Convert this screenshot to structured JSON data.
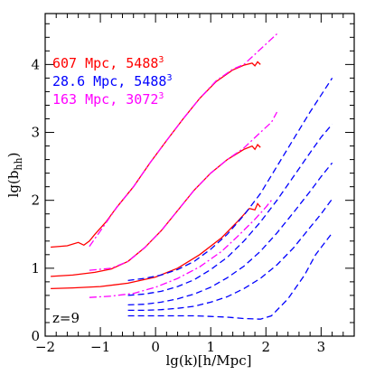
{
  "chart_data": {
    "type": "line",
    "xlabel": "lg(k)[h/Mpc]",
    "ylabel": "lg(b_hh)",
    "ylabel_main": "lg(b",
    "ylabel_sub": "hh",
    "ylabel_close": ")",
    "xlim": [
      -2,
      3.6
    ],
    "ylim": [
      0,
      4.75
    ],
    "xticks": [
      -2,
      -1,
      0,
      1,
      2,
      3
    ],
    "yticks": [
      0,
      1,
      2,
      3,
      4
    ],
    "xtick_labels": [
      "−2",
      "−1",
      "0",
      "1",
      "2",
      "3"
    ],
    "ytick_labels": [
      "0",
      "1",
      "2",
      "3",
      "4"
    ],
    "grid": false,
    "annotation": "z=9",
    "legend": [
      {
        "text": "607 Mpc, 5488",
        "sup": "3",
        "color": "#ff0000"
      },
      {
        "text": "28.6 Mpc, 5488",
        "sup": "3",
        "color": "#0000ff"
      },
      {
        "text": "163 Mpc, 3072",
        "sup": "3",
        "color": "#ff00ff"
      }
    ],
    "legend_position": "top-left",
    "series": [
      {
        "group": "red",
        "color": "#ff0000",
        "style": "solid",
        "points": [
          [
            -1.9,
            1.31
          ],
          [
            -1.6,
            1.33
          ],
          [
            -1.4,
            1.38
          ],
          [
            -1.3,
            1.34
          ],
          [
            -1.2,
            1.4
          ],
          [
            -1.1,
            1.5
          ],
          [
            -0.9,
            1.68
          ],
          [
            -0.7,
            1.9
          ],
          [
            -0.4,
            2.2
          ],
          [
            -0.1,
            2.55
          ],
          [
            0.2,
            2.88
          ],
          [
            0.5,
            3.2
          ],
          [
            0.8,
            3.5
          ],
          [
            1.1,
            3.75
          ],
          [
            1.4,
            3.92
          ],
          [
            1.6,
            3.99
          ],
          [
            1.75,
            4.02
          ],
          [
            1.8,
            3.98
          ],
          [
            1.85,
            4.04
          ],
          [
            1.9,
            4.0
          ]
        ]
      },
      {
        "group": "red",
        "color": "#ff0000",
        "style": "solid",
        "points": [
          [
            -1.9,
            0.88
          ],
          [
            -1.5,
            0.9
          ],
          [
            -1.1,
            0.94
          ],
          [
            -0.8,
            0.99
          ],
          [
            -0.5,
            1.1
          ],
          [
            -0.2,
            1.3
          ],
          [
            0.1,
            1.55
          ],
          [
            0.4,
            1.85
          ],
          [
            0.7,
            2.15
          ],
          [
            1.0,
            2.4
          ],
          [
            1.3,
            2.6
          ],
          [
            1.6,
            2.75
          ],
          [
            1.75,
            2.8
          ],
          [
            1.8,
            2.75
          ],
          [
            1.85,
            2.82
          ],
          [
            1.9,
            2.78
          ]
        ]
      },
      {
        "group": "red",
        "color": "#ff0000",
        "style": "solid",
        "points": [
          [
            -1.9,
            0.7
          ],
          [
            -1.5,
            0.71
          ],
          [
            -1.0,
            0.73
          ],
          [
            -0.5,
            0.78
          ],
          [
            0.0,
            0.87
          ],
          [
            0.4,
            1.0
          ],
          [
            0.8,
            1.2
          ],
          [
            1.2,
            1.45
          ],
          [
            1.5,
            1.7
          ],
          [
            1.7,
            1.88
          ],
          [
            1.8,
            1.86
          ],
          [
            1.85,
            1.95
          ],
          [
            1.9,
            1.9
          ]
        ]
      },
      {
        "group": "magenta",
        "color": "#ff00ff",
        "style": "dashdot",
        "points": [
          [
            -1.2,
            1.32
          ],
          [
            -1.0,
            1.55
          ],
          [
            -0.7,
            1.9
          ],
          [
            -0.4,
            2.2
          ],
          [
            -0.1,
            2.55
          ],
          [
            0.2,
            2.88
          ],
          [
            0.5,
            3.2
          ],
          [
            0.8,
            3.5
          ],
          [
            1.1,
            3.76
          ],
          [
            1.4,
            3.93
          ],
          [
            1.6,
            4.0
          ],
          [
            1.8,
            4.15
          ],
          [
            2.0,
            4.3
          ],
          [
            2.2,
            4.45
          ]
        ]
      },
      {
        "group": "magenta",
        "color": "#ff00ff",
        "style": "dashdot",
        "points": [
          [
            -1.2,
            0.97
          ],
          [
            -0.8,
            1.0
          ],
          [
            -0.5,
            1.1
          ],
          [
            -0.2,
            1.3
          ],
          [
            0.1,
            1.55
          ],
          [
            0.4,
            1.85
          ],
          [
            0.7,
            2.15
          ],
          [
            1.0,
            2.4
          ],
          [
            1.3,
            2.6
          ],
          [
            1.6,
            2.77
          ],
          [
            1.9,
            3.0
          ],
          [
            2.1,
            3.15
          ],
          [
            2.2,
            3.3
          ]
        ]
      },
      {
        "group": "magenta",
        "color": "#ff00ff",
        "style": "dashdot",
        "points": [
          [
            -1.2,
            0.57
          ],
          [
            -0.8,
            0.59
          ],
          [
            -0.4,
            0.63
          ],
          [
            0.0,
            0.72
          ],
          [
            0.4,
            0.85
          ],
          [
            0.8,
            1.02
          ],
          [
            1.2,
            1.25
          ],
          [
            1.5,
            1.48
          ],
          [
            1.8,
            1.72
          ],
          [
            2.0,
            1.9
          ],
          [
            2.1,
            2.0
          ]
        ]
      },
      {
        "group": "blue",
        "color": "#0000ff",
        "style": "dashed",
        "points": [
          [
            -0.5,
            0.82
          ],
          [
            -0.2,
            0.85
          ],
          [
            0.1,
            0.9
          ],
          [
            0.4,
            0.98
          ],
          [
            0.7,
            1.1
          ],
          [
            1.0,
            1.28
          ],
          [
            1.3,
            1.5
          ],
          [
            1.6,
            1.78
          ],
          [
            1.9,
            2.1
          ],
          [
            2.2,
            2.5
          ],
          [
            2.5,
            2.9
          ],
          [
            2.8,
            3.3
          ],
          [
            3.0,
            3.55
          ],
          [
            3.2,
            3.8
          ]
        ]
      },
      {
        "group": "blue",
        "color": "#0000ff",
        "style": "dashed",
        "points": [
          [
            -0.5,
            0.6
          ],
          [
            -0.2,
            0.62
          ],
          [
            0.1,
            0.66
          ],
          [
            0.4,
            0.73
          ],
          [
            0.7,
            0.83
          ],
          [
            1.0,
            0.98
          ],
          [
            1.3,
            1.16
          ],
          [
            1.6,
            1.4
          ],
          [
            1.9,
            1.68
          ],
          [
            2.2,
            2.0
          ],
          [
            2.5,
            2.35
          ],
          [
            2.8,
            2.7
          ],
          [
            3.0,
            2.93
          ],
          [
            3.2,
            3.12
          ]
        ]
      },
      {
        "group": "blue",
        "color": "#0000ff",
        "style": "dashed",
        "points": [
          [
            -0.5,
            0.46
          ],
          [
            -0.2,
            0.47
          ],
          [
            0.1,
            0.5
          ],
          [
            0.4,
            0.55
          ],
          [
            0.7,
            0.62
          ],
          [
            1.0,
            0.72
          ],
          [
            1.3,
            0.86
          ],
          [
            1.6,
            1.03
          ],
          [
            1.9,
            1.25
          ],
          [
            2.2,
            1.52
          ],
          [
            2.5,
            1.82
          ],
          [
            2.8,
            2.13
          ],
          [
            3.0,
            2.35
          ],
          [
            3.2,
            2.55
          ]
        ]
      },
      {
        "group": "blue",
        "color": "#0000ff",
        "style": "dashed",
        "points": [
          [
            -0.5,
            0.38
          ],
          [
            -0.2,
            0.38
          ],
          [
            0.1,
            0.39
          ],
          [
            0.4,
            0.41
          ],
          [
            0.7,
            0.44
          ],
          [
            1.0,
            0.5
          ],
          [
            1.3,
            0.58
          ],
          [
            1.6,
            0.7
          ],
          [
            1.9,
            0.85
          ],
          [
            2.2,
            1.05
          ],
          [
            2.5,
            1.3
          ],
          [
            2.8,
            1.6
          ],
          [
            3.0,
            1.8
          ],
          [
            3.2,
            2.02
          ]
        ]
      },
      {
        "group": "blue",
        "color": "#0000ff",
        "style": "dashed",
        "points": [
          [
            -0.5,
            0.3
          ],
          [
            -0.2,
            0.3
          ],
          [
            0.1,
            0.3
          ],
          [
            0.4,
            0.3
          ],
          [
            0.7,
            0.3
          ],
          [
            1.0,
            0.29
          ],
          [
            1.3,
            0.28
          ],
          [
            1.6,
            0.26
          ],
          [
            1.9,
            0.25
          ],
          [
            2.1,
            0.3
          ],
          [
            2.4,
            0.55
          ],
          [
            2.7,
            0.9
          ],
          [
            2.9,
            1.2
          ],
          [
            3.2,
            1.52
          ]
        ]
      }
    ]
  }
}
